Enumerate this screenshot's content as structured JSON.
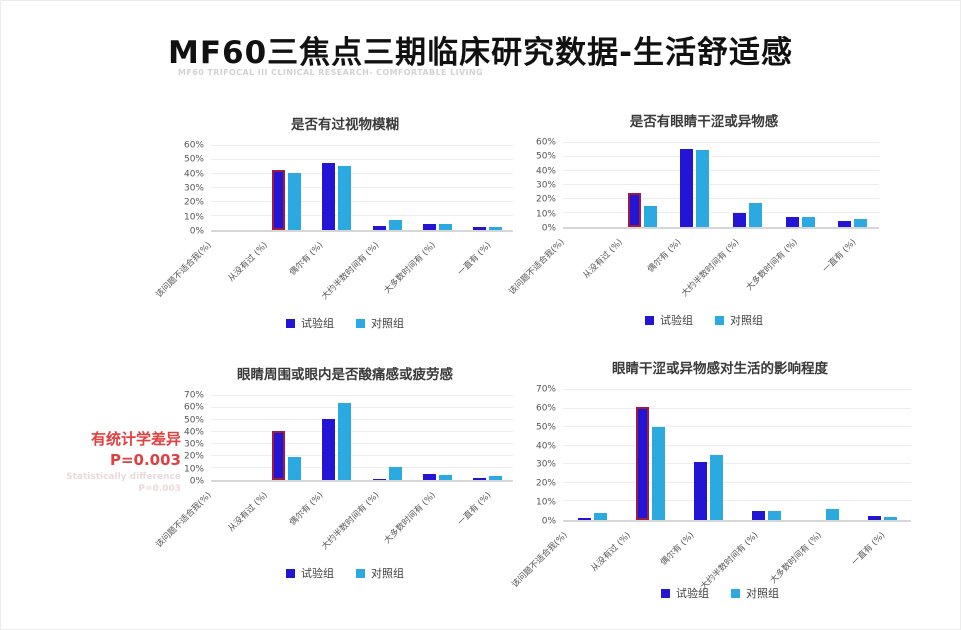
{
  "header": {
    "title": "MF60三焦点三期临床研究数据-生活舒适感",
    "subtitle": "MF60 TRIFOCAL III CLINICAL RESEARCH- COMFORTABLE LIVING"
  },
  "annotation": {
    "line1_cn": "有统计学差异",
    "line2_cn": "P=0.003",
    "line3_en": "Statistically difference",
    "line4_en": "P=0.003",
    "color": "#E04040"
  },
  "colors": {
    "experimental_group": "#2215D6",
    "control_group": "#2AAAE1",
    "highlight_outline": "#A01B42"
  },
  "chart_data": [
    {
      "type": "bar",
      "title": "是否有过视物模糊",
      "categories": [
        "该问题不适合我(%)",
        "从没有过 (%)",
        "偶尔有 (%)",
        "大约半数时间有 (%)",
        "大多数时间有 (%)",
        "一直有 (%)"
      ],
      "series": [
        {
          "name": "试验组",
          "color": "#2215D6",
          "values": [
            0,
            43,
            48,
            3,
            4,
            2
          ]
        },
        {
          "name": "对照组",
          "color": "#2AAAE1",
          "values": [
            0,
            41,
            46,
            7,
            4,
            2
          ]
        }
      ],
      "ylim": [
        0,
        60
      ],
      "ytick_step": 10,
      "grid": true,
      "legend_position": "bottom",
      "highlight": {
        "series": 0,
        "category": 1,
        "outline": "#A01B42"
      }
    },
    {
      "type": "bar",
      "title": "是否有眼睛干涩或异物感",
      "categories": [
        "该问题不适合我(%)",
        "从没有过 (%)",
        "偶尔有 (%)",
        "大约半数时间有 (%)",
        "大多数时间有 (%)",
        "一直有 (%)"
      ],
      "series": [
        {
          "name": "试验组",
          "color": "#2215D6",
          "values": [
            0,
            24,
            56,
            10,
            7,
            4
          ]
        },
        {
          "name": "对照组",
          "color": "#2AAAE1",
          "values": [
            0,
            15,
            55,
            17,
            7,
            6
          ]
        }
      ],
      "ylim": [
        0,
        60
      ],
      "ytick_step": 10,
      "grid": true,
      "legend_position": "bottom",
      "highlight": {
        "series": 0,
        "category": 1,
        "outline": "#A01B42"
      }
    },
    {
      "type": "bar",
      "title": "眼睛周围或眼内是否酸痛感或疲劳感",
      "categories": [
        "该问题不适合我(%)",
        "从没有过 (%)",
        "偶尔有 (%)",
        "大约半数时间有 (%)",
        "大多数时间有 (%)",
        "一直有 (%)"
      ],
      "series": [
        {
          "name": "试验组",
          "color": "#2215D6",
          "values": [
            0,
            41,
            51,
            1,
            5,
            2
          ]
        },
        {
          "name": "对照组",
          "color": "#2AAAE1",
          "values": [
            0,
            19,
            64,
            11,
            4,
            3
          ]
        }
      ],
      "ylim": [
        0,
        70
      ],
      "ytick_step": 10,
      "grid": true,
      "legend_position": "bottom",
      "highlight": {
        "series": 0,
        "category": 1,
        "outline": "#A01B42"
      }
    },
    {
      "type": "bar",
      "title": "眼睛干涩或异物感对生活的影响程度",
      "categories": [
        "该问题不适合我(%)",
        "从没有过 (%)",
        "偶尔有 (%)",
        "大约半数时间有 (%)",
        "大多数时间有 (%)",
        "一直有 (%)"
      ],
      "series": [
        {
          "name": "试验组",
          "color": "#2215D6",
          "values": [
            1,
            61,
            31,
            5,
            0,
            2
          ]
        },
        {
          "name": "对照组",
          "color": "#2AAAE1",
          "values": [
            4,
            50,
            35,
            5,
            6,
            1.5
          ]
        }
      ],
      "ylim": [
        0,
        70
      ],
      "ytick_step": 10,
      "grid": true,
      "legend_position": "bottom",
      "highlight": {
        "series": 0,
        "category": 1,
        "outline": "#A01B42"
      }
    }
  ]
}
